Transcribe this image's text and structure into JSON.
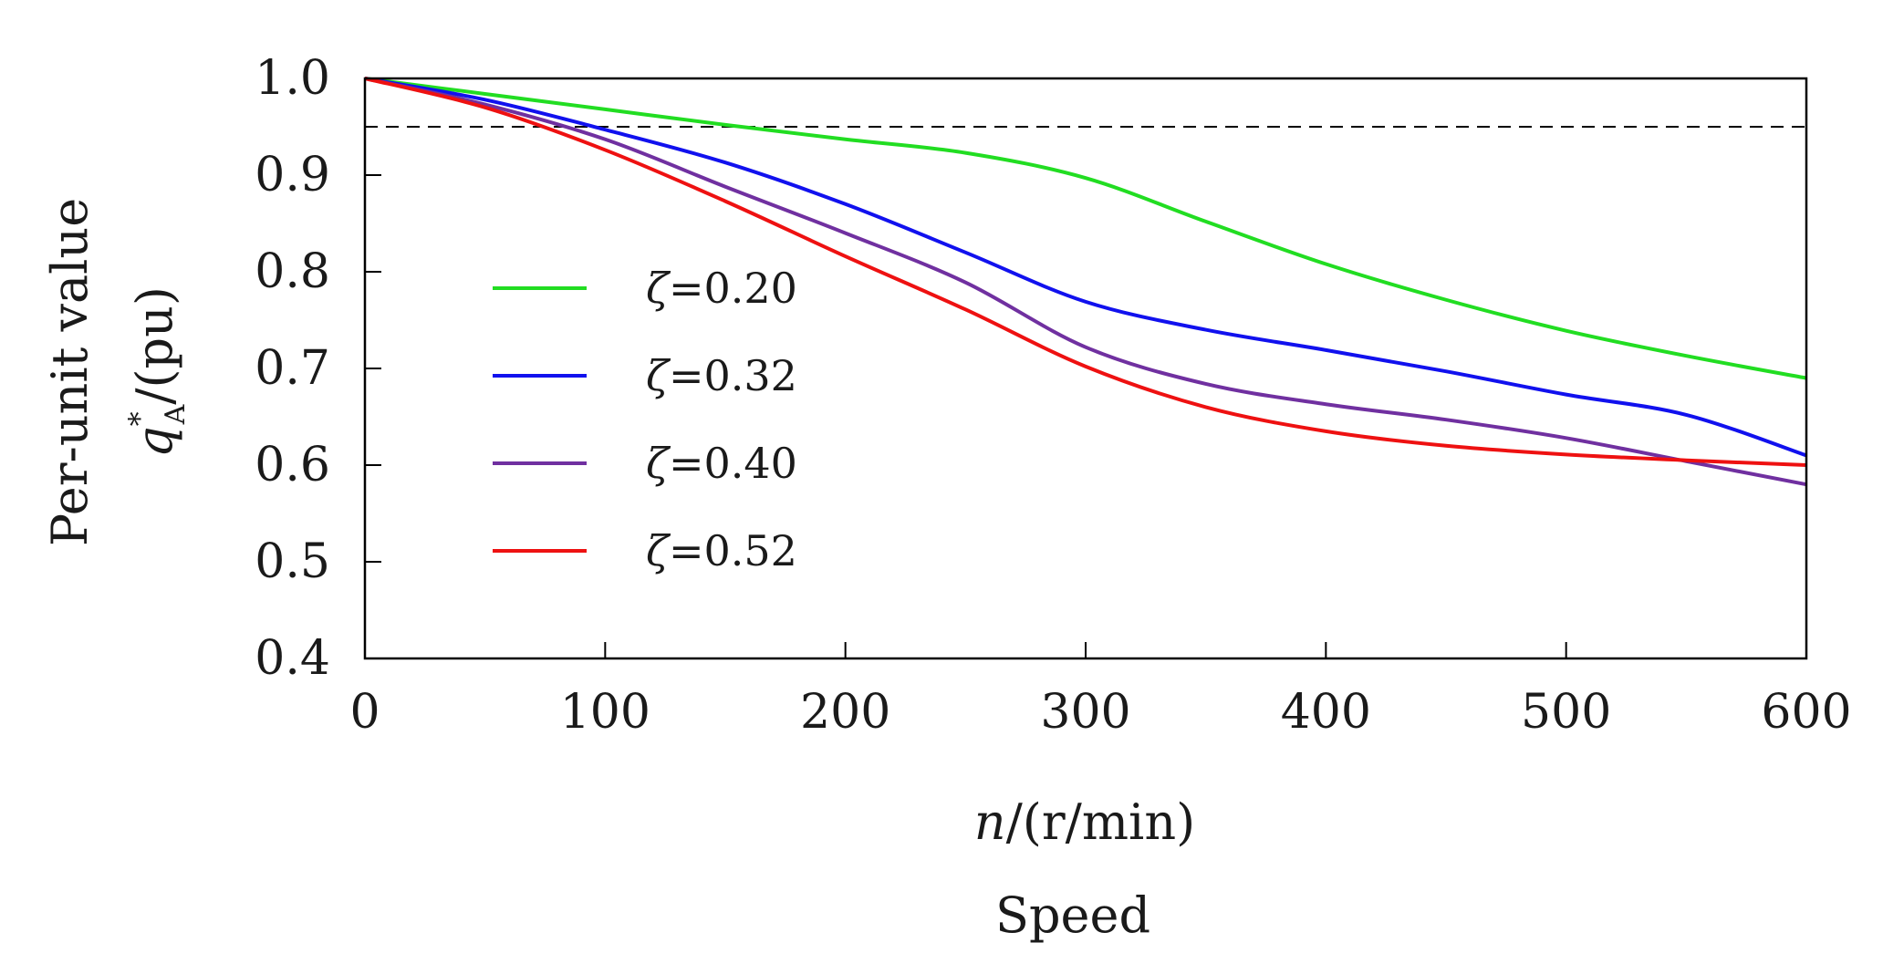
{
  "chart_data": {
    "type": "line",
    "xlabel": {
      "var": "n",
      "unit": "r/min",
      "text": "n/(r/min)",
      "caption": "Speed"
    },
    "ylabel": {
      "caption": "Per-unit value",
      "var": "q",
      "sup": "*",
      "sub": "A",
      "unit": "pu",
      "text": "q*A/(pu)"
    },
    "xlim": [
      0,
      600
    ],
    "ylim": [
      0.4,
      1.0
    ],
    "xticks": [
      0,
      100,
      200,
      300,
      400,
      500,
      600
    ],
    "yticks": [
      0.4,
      0.5,
      0.6,
      0.7,
      0.8,
      0.9,
      1.0
    ],
    "xtick_labels": [
      "0",
      "100",
      "200",
      "300",
      "400",
      "500",
      "600"
    ],
    "ytick_labels": [
      "0.4",
      "0.5",
      "0.6",
      "0.7",
      "0.8",
      "0.9",
      "1.0"
    ],
    "reference_line": {
      "y": 0.95,
      "style": "dashed",
      "color": "#000000"
    },
    "legend_position": "center-left",
    "x": [
      0,
      50,
      100,
      150,
      200,
      250,
      300,
      350,
      400,
      450,
      500,
      550,
      600
    ],
    "series": [
      {
        "name": "ζ=0.20",
        "symbol": "ζ",
        "value_text": "=0.20",
        "color": "#22dd22",
        "values": [
          1.0,
          0.984,
          0.968,
          0.952,
          0.937,
          0.923,
          0.897,
          0.852,
          0.808,
          0.771,
          0.739,
          0.713,
          0.69
        ]
      },
      {
        "name": "ζ=0.32",
        "symbol": "ζ",
        "value_text": "=0.32",
        "color": "#1111ee",
        "values": [
          1.0,
          0.978,
          0.947,
          0.913,
          0.87,
          0.82,
          0.769,
          0.74,
          0.719,
          0.697,
          0.673,
          0.652,
          0.61
        ]
      },
      {
        "name": "ζ=0.40",
        "symbol": "ζ",
        "value_text": "=0.40",
        "color": "#7030a0",
        "values": [
          1.0,
          0.973,
          0.937,
          0.888,
          0.84,
          0.789,
          0.722,
          0.684,
          0.663,
          0.647,
          0.628,
          0.604,
          0.58
        ]
      },
      {
        "name": "ζ=0.52",
        "symbol": "ζ",
        "value_text": "=0.52",
        "color": "#ee1111",
        "values": [
          1.0,
          0.97,
          0.926,
          0.873,
          0.816,
          0.761,
          0.702,
          0.66,
          0.635,
          0.62,
          0.611,
          0.605,
          0.6
        ]
      }
    ]
  }
}
